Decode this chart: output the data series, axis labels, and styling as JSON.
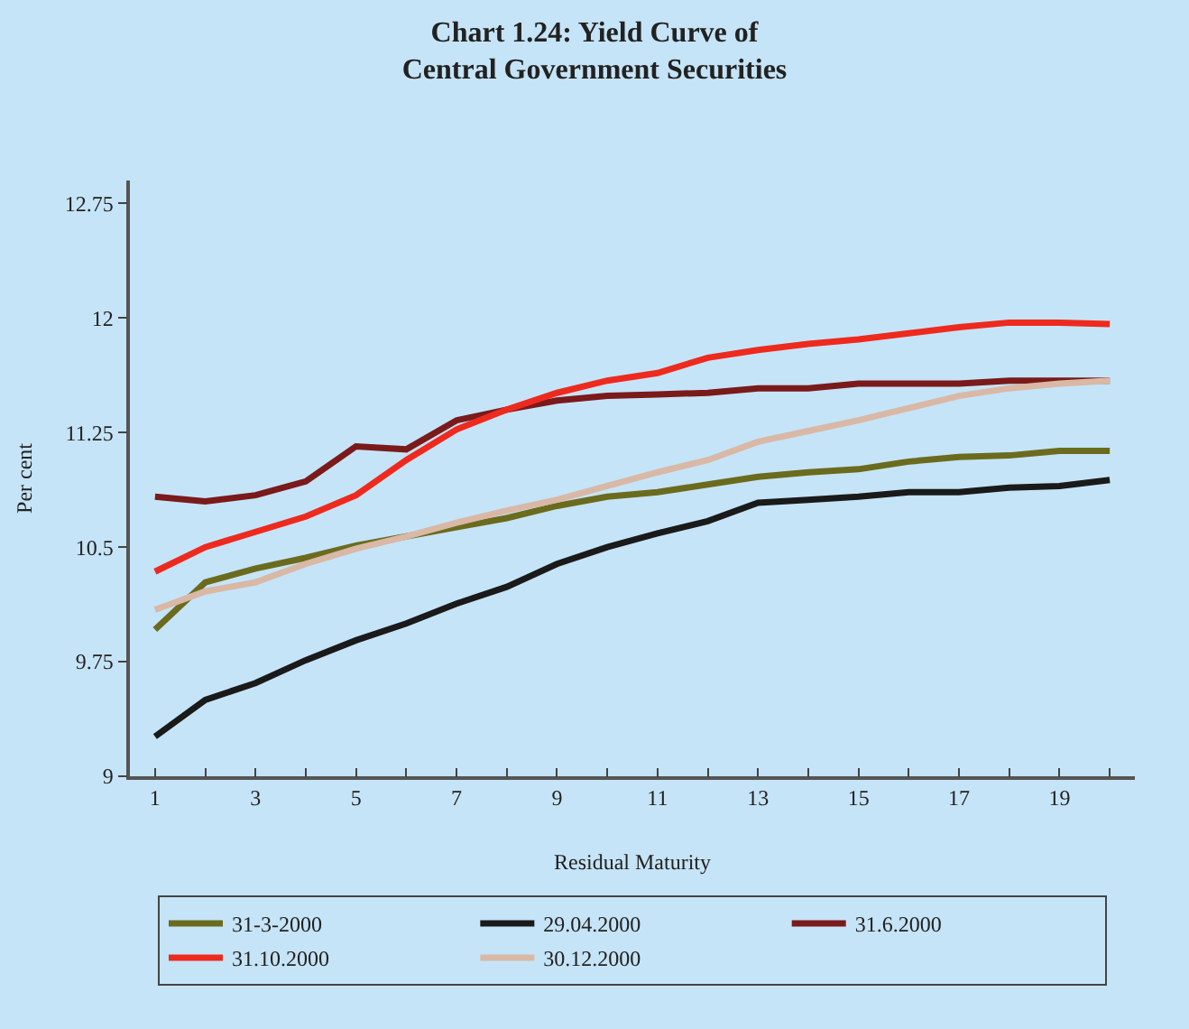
{
  "chart_data": {
    "type": "line",
    "title": "Chart 1.24: Yield Curve of Central Government Securities",
    "xlabel": "Residual Maturity",
    "ylabel": "Per cent",
    "x": [
      1,
      2,
      3,
      4,
      5,
      6,
      7,
      8,
      9,
      10,
      11,
      12,
      13,
      14,
      15,
      16,
      17,
      18,
      19,
      20
    ],
    "xlim": [
      0.5,
      20.5
    ],
    "xticks": [
      1,
      {
        "value": 2,
        "label": null
      },
      3,
      {
        "value": 4,
        "label": null
      },
      5,
      {
        "value": 6,
        "label": null
      },
      7,
      {
        "value": 8,
        "label": null
      },
      9,
      {
        "value": 10,
        "label": null
      },
      11,
      {
        "value": 12,
        "label": null
      },
      13,
      {
        "value": 14,
        "label": null
      },
      15,
      {
        "value": 16,
        "label": null
      },
      17,
      {
        "value": 18,
        "label": null
      },
      19,
      {
        "value": 20,
        "label": null
      }
    ],
    "ylim": [
      9,
      12.9
    ],
    "yticks": [
      9,
      9.75,
      10.5,
      11.25,
      12,
      12.75
    ],
    "grid": false,
    "legend": "bottom",
    "marker": "none",
    "line_style": "solid",
    "series": [
      {
        "name": "31-3-2000",
        "color": "#6b6b1e",
        "values": [
          9.96,
          10.27,
          10.36,
          10.43,
          10.51,
          10.57,
          10.63,
          10.69,
          10.77,
          10.83,
          10.86,
          10.91,
          10.96,
          10.99,
          11.01,
          11.06,
          11.09,
          11.1,
          11.13,
          11.13
        ]
      },
      {
        "name": "29.04.2000",
        "color": "#1a1a1a",
        "values": [
          9.26,
          9.5,
          9.61,
          9.76,
          9.89,
          10.0,
          10.13,
          10.24,
          10.39,
          10.5,
          10.59,
          10.67,
          10.79,
          10.81,
          10.83,
          10.86,
          10.86,
          10.89,
          10.9,
          10.94
        ]
      },
      {
        "name": "31.6.2000",
        "color": "#7a1a1a",
        "values": [
          10.83,
          10.8,
          10.84,
          10.93,
          11.16,
          11.14,
          11.33,
          11.4,
          11.46,
          11.49,
          11.5,
          11.51,
          11.54,
          11.54,
          11.57,
          11.57,
          11.57,
          11.59,
          11.59,
          11.59
        ]
      },
      {
        "name": "31.10.2000",
        "color": "#ee2a1e",
        "values": [
          10.34,
          10.5,
          10.6,
          10.7,
          10.84,
          11.07,
          11.27,
          11.4,
          11.51,
          11.59,
          11.64,
          11.74,
          11.79,
          11.83,
          11.86,
          11.9,
          11.94,
          11.97,
          11.97,
          11.96
        ]
      },
      {
        "name": "30.12.2000",
        "color": "#d9b8a6",
        "values": [
          10.09,
          10.21,
          10.27,
          10.39,
          10.49,
          10.57,
          10.66,
          10.74,
          10.81,
          10.9,
          10.99,
          11.07,
          11.19,
          11.26,
          11.33,
          11.41,
          11.49,
          11.54,
          11.57,
          11.59
        ]
      }
    ]
  }
}
